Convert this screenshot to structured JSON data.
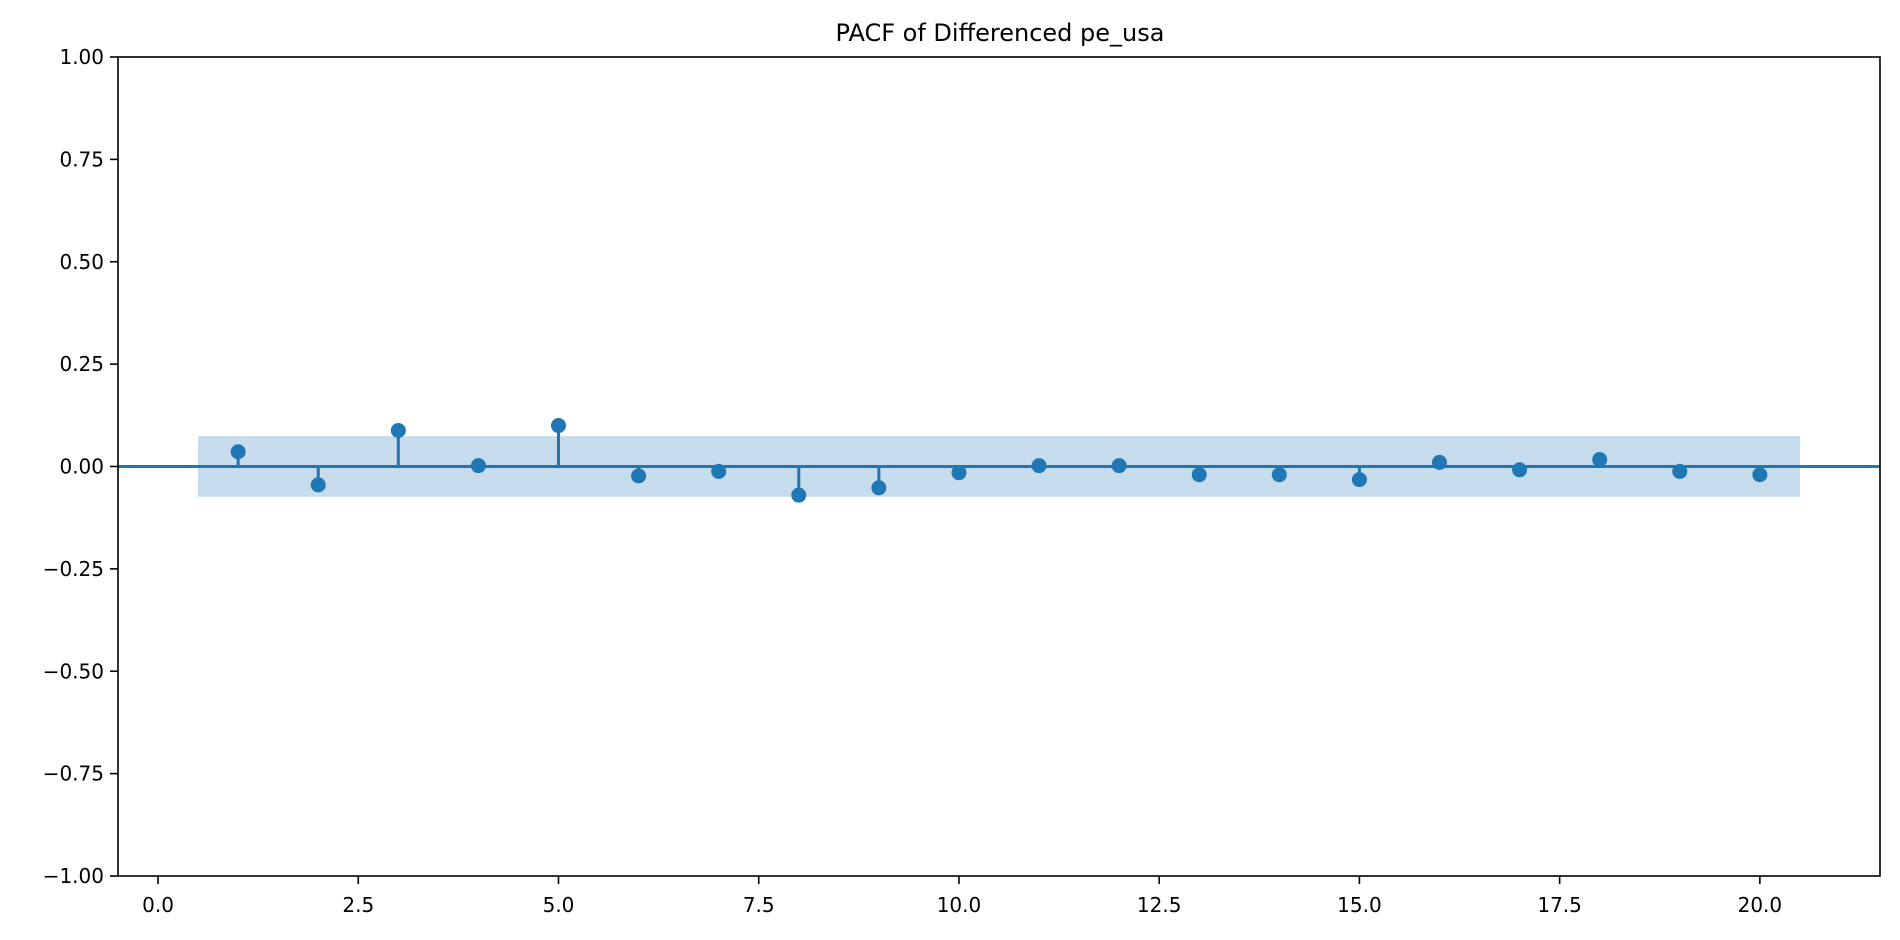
{
  "chart_data": {
    "type": "scatter",
    "title": "PACF of Differenced pe_usa",
    "xlabel": "",
    "ylabel": "",
    "xlim": [
      -0.5,
      21.5
    ],
    "ylim": [
      -1.0,
      1.0
    ],
    "x_ticks": [
      0.0,
      2.5,
      5.0,
      7.5,
      10.0,
      12.5,
      15.0,
      17.5,
      20.0
    ],
    "x_tick_labels": [
      "0.0",
      "2.5",
      "5.0",
      "7.5",
      "10.0",
      "12.5",
      "15.0",
      "17.5",
      "20.0"
    ],
    "y_ticks": [
      1.0,
      0.75,
      0.5,
      0.25,
      0.0,
      -0.25,
      -0.5,
      -0.75,
      -1.0
    ],
    "y_tick_labels": [
      "1.00",
      "0.75",
      "0.50",
      "0.25",
      "0.00",
      "−0.25",
      "−0.50",
      "−0.75",
      "−1.00"
    ],
    "grid": false,
    "stem": true,
    "x": [
      1,
      2,
      3,
      4,
      5,
      6,
      7,
      8,
      9,
      10,
      11,
      12,
      13,
      14,
      15,
      16,
      17,
      18,
      19,
      20
    ],
    "values": [
      0.036,
      -0.045,
      0.088,
      0.002,
      0.1,
      -0.023,
      -0.012,
      -0.07,
      -0.052,
      -0.015,
      0.002,
      0.002,
      -0.02,
      -0.02,
      -0.032,
      0.01,
      -0.008,
      0.017,
      -0.012,
      -0.02
    ],
    "confidence_band": {
      "x_range": [
        0.5,
        20.5
      ],
      "lower": -0.074,
      "upper": 0.074
    },
    "colors": {
      "marker": "#1f77b4",
      "band": "#c6dbec",
      "axes": "#000000"
    }
  }
}
